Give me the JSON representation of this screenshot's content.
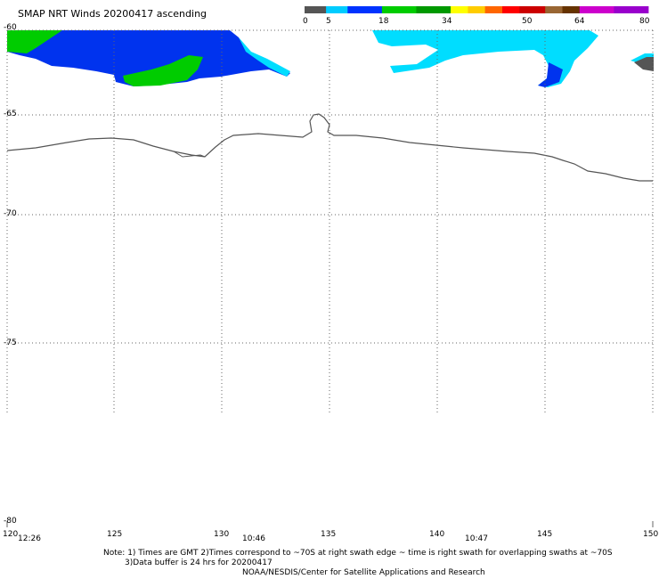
{
  "title": "SMAP NRT Winds 20200417 ascending",
  "colorbar": {
    "labels": [
      "0",
      "5",
      "18",
      "34",
      "50",
      "64",
      "80"
    ],
    "segments": [
      {
        "from": 0,
        "to": 5,
        "color": "#555555"
      },
      {
        "from": 5,
        "to": 10,
        "color": "#00ccff"
      },
      {
        "from": 10,
        "to": 18,
        "color": "#0033ff"
      },
      {
        "from": 18,
        "to": 26,
        "color": "#00cc00"
      },
      {
        "from": 26,
        "to": 34,
        "color": "#009900"
      },
      {
        "from": 34,
        "to": 38,
        "color": "#ffff00"
      },
      {
        "from": 38,
        "to": 42,
        "color": "#ffcc00"
      },
      {
        "from": 42,
        "to": 46,
        "color": "#ff6600"
      },
      {
        "from": 46,
        "to": 50,
        "color": "#ff0000"
      },
      {
        "from": 50,
        "to": 56,
        "color": "#cc0000"
      },
      {
        "from": 56,
        "to": 60,
        "color": "#996633"
      },
      {
        "from": 60,
        "to": 64,
        "color": "#663300"
      },
      {
        "from": 64,
        "to": 72,
        "color": "#cc00cc"
      },
      {
        "from": 72,
        "to": 80,
        "color": "#9900cc"
      }
    ]
  },
  "latitude_labels": [
    "-60",
    "-65",
    "-70",
    "-75",
    "-80"
  ],
  "longitude_labels": [
    "120",
    "125",
    "130",
    "135",
    "140",
    "145",
    "150"
  ],
  "swath_times": [
    "12:26",
    "10:46",
    "10:47"
  ],
  "notes": {
    "line1": "Note: 1) Times are GMT 2)Times correspond to ~70S at right swath edge ~ time is right swath for overlapping swaths at ~70S",
    "line2": "3)Data buffer is 24 hrs for 20200417",
    "line3": "NOAA/NESDIS/Center for Satellite Applications and Research"
  },
  "map": {
    "lon_range": [
      120,
      150
    ],
    "lat_range": [
      -60,
      -80
    ],
    "grid": "dotted",
    "coastline_color": "#555555",
    "wind_colors": {
      "cyan": "#00ddff",
      "blue": "#0033ee",
      "green": "#00cc00",
      "gray": "#555555"
    }
  }
}
